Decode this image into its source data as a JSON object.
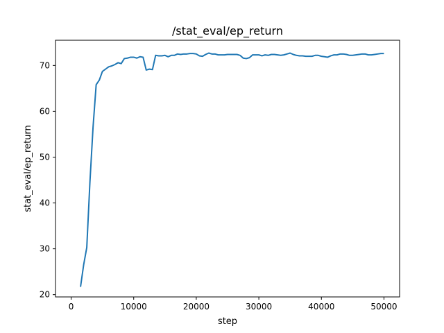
{
  "chart_data": {
    "type": "line",
    "title": "/stat_eval/ep_return",
    "xlabel": "step",
    "ylabel": "stat_eval/ep_return",
    "xlim": [
      -2500,
      52500
    ],
    "ylim": [
      19.5,
      75.5
    ],
    "xticks": [
      0,
      10000,
      20000,
      30000,
      40000,
      50000
    ],
    "xtick_labels": [
      "0",
      "10000",
      "20000",
      "30000",
      "40000",
      "50000"
    ],
    "yticks": [
      20,
      30,
      40,
      50,
      60,
      70
    ],
    "ytick_labels": [
      "20",
      "30",
      "40",
      "50",
      "60",
      "70"
    ],
    "grid": false,
    "legend": "none",
    "series": [
      {
        "color": "#1f77b4",
        "x": [
          1500,
          2000,
          2500,
          3000,
          3500,
          4000,
          4500,
          5000,
          5500,
          6000,
          6500,
          7000,
          7500,
          8000,
          8500,
          9000,
          9500,
          10000,
          10500,
          11000,
          11500,
          12000,
          12500,
          13000,
          13500,
          14000,
          14500,
          15000,
          15500,
          16000,
          16500,
          17000,
          17500,
          18000,
          18500,
          19000,
          19500,
          20000,
          20500,
          21000,
          21500,
          22000,
          22500,
          23000,
          23500,
          24000,
          24500,
          25000,
          25500,
          26000,
          26500,
          27000,
          27500,
          28000,
          28500,
          29000,
          29500,
          30000,
          30500,
          31000,
          31500,
          32000,
          32500,
          33000,
          33500,
          34000,
          34500,
          35000,
          35500,
          36000,
          36500,
          37000,
          37500,
          38000,
          38500,
          39000,
          39500,
          40000,
          40500,
          41000,
          41500,
          42000,
          42500,
          43000,
          43500,
          44000,
          44500,
          45000,
          45500,
          46000,
          46500,
          47000,
          47500,
          48000,
          48500,
          49000,
          49500,
          50000
        ],
        "y": [
          21.7,
          26.5,
          30.3,
          44.5,
          56.5,
          65.8,
          66.8,
          68.7,
          69.2,
          69.7,
          69.9,
          70.2,
          70.6,
          70.4,
          71.5,
          71.6,
          71.8,
          71.8,
          71.6,
          71.9,
          71.8,
          69.0,
          69.2,
          69.1,
          72.2,
          72.1,
          72.1,
          72.2,
          71.9,
          72.2,
          72.2,
          72.5,
          72.4,
          72.5,
          72.5,
          72.6,
          72.6,
          72.5,
          72.1,
          72.0,
          72.4,
          72.7,
          72.5,
          72.5,
          72.3,
          72.3,
          72.3,
          72.4,
          72.4,
          72.4,
          72.4,
          72.2,
          71.6,
          71.5,
          71.7,
          72.3,
          72.3,
          72.3,
          72.1,
          72.3,
          72.2,
          72.4,
          72.4,
          72.3,
          72.2,
          72.3,
          72.5,
          72.7,
          72.4,
          72.2,
          72.1,
          72.1,
          72.0,
          72.0,
          72.0,
          72.2,
          72.2,
          72.0,
          71.9,
          71.8,
          72.1,
          72.3,
          72.3,
          72.5,
          72.5,
          72.4,
          72.2,
          72.2,
          72.3,
          72.4,
          72.5,
          72.5,
          72.3,
          72.3,
          72.4,
          72.5,
          72.6,
          72.6
        ]
      }
    ]
  }
}
